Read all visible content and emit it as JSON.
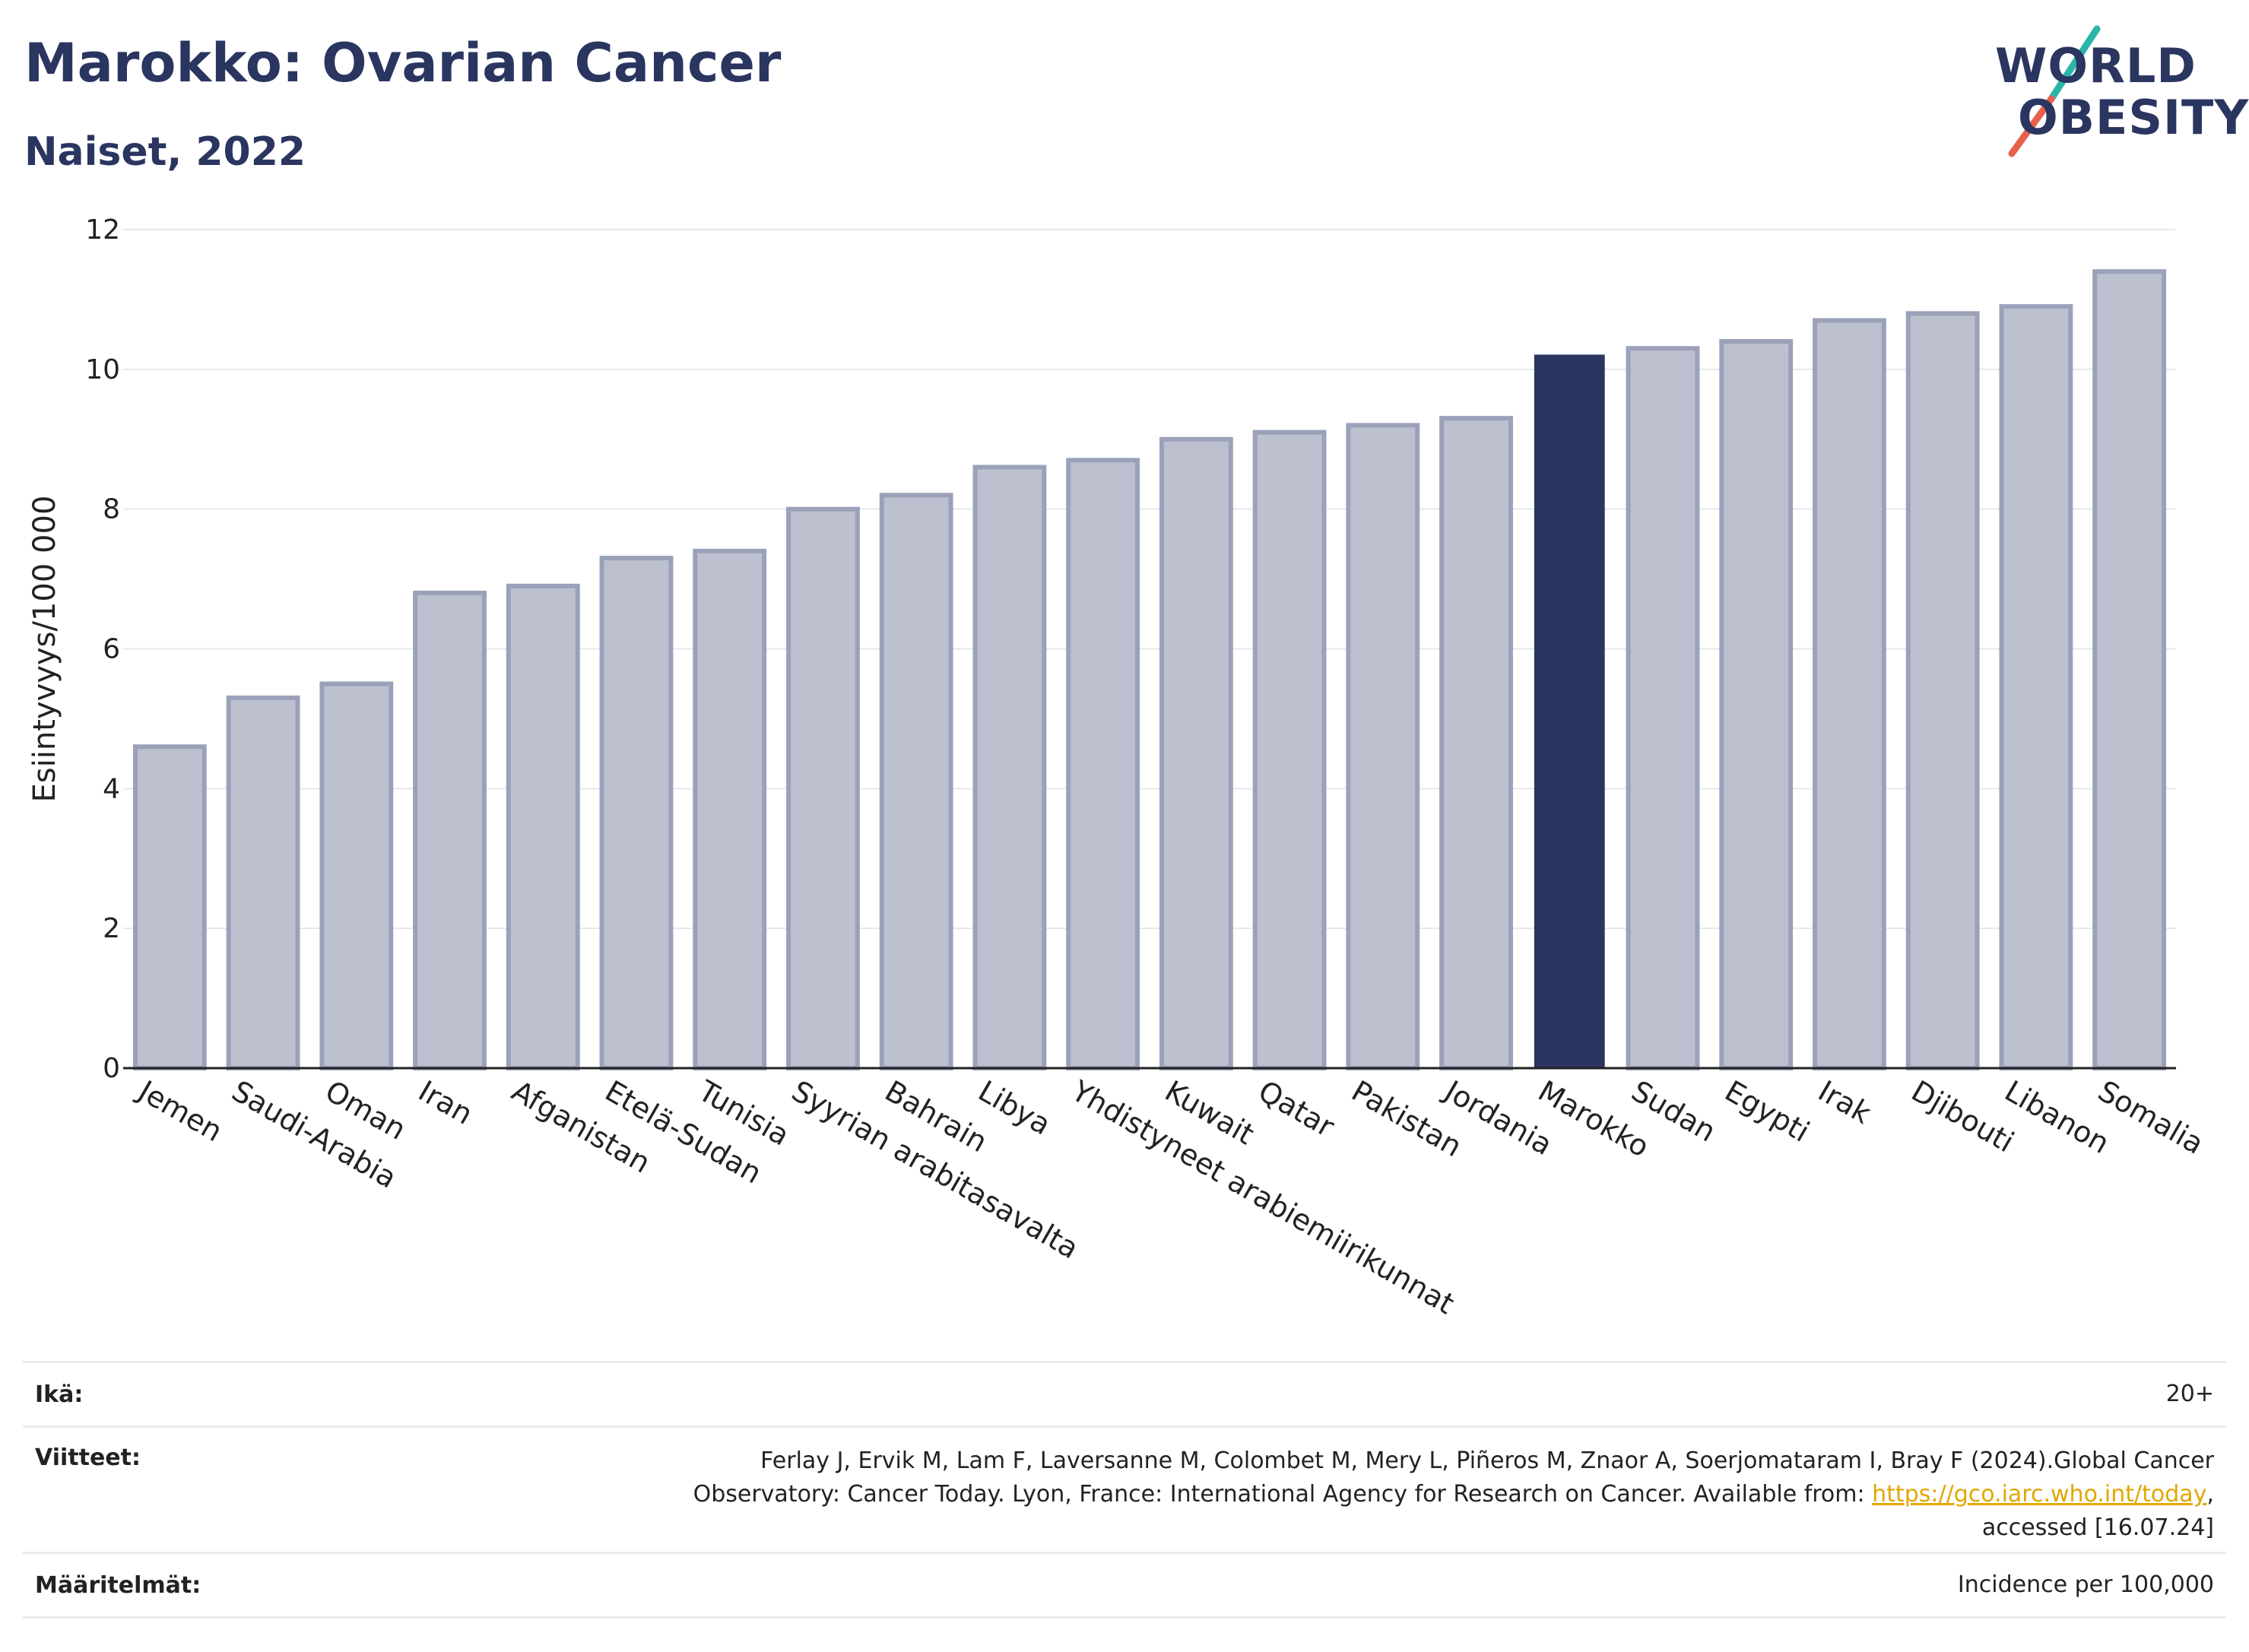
{
  "header": {
    "title": "Marokko: Ovarian Cancer",
    "subtitle": "Naiset, 2022"
  },
  "logo": {
    "line1": "WORLD",
    "line2": "OBESITY",
    "line1_rest": "RLD",
    "line2_rest": "BESITY",
    "line1_start": "W"
  },
  "colors": {
    "bar": "#bcc0cf",
    "bar_border": "#9aa1b9",
    "highlight": "#2a3560",
    "title": "#2a3560",
    "link": "#e0a800"
  },
  "chart_data": {
    "type": "bar",
    "ylabel": "Esiintyvyys/100 000",
    "xlabel": "",
    "ylim": [
      0,
      12
    ],
    "yticks": [
      0,
      2,
      4,
      6,
      8,
      10,
      12
    ],
    "grid": true,
    "highlight": "Marokko",
    "categories": [
      "Jemen",
      "Saudi-Arabia",
      "Oman",
      "Iran",
      "Afganistan",
      "Etelä-Sudan",
      "Tunisia",
      "Syyrian arabitasavalta",
      "Bahrain",
      "Libya",
      "Yhdistyneet arabiemiirikunnat",
      "Kuwait",
      "Qatar",
      "Pakistan",
      "Jordania",
      "Marokko",
      "Sudan",
      "Egypti",
      "Irak",
      "Djibouti",
      "Libanon",
      "Somalia"
    ],
    "values": [
      4.6,
      5.3,
      5.5,
      6.8,
      6.9,
      7.3,
      7.4,
      8.0,
      8.2,
      8.6,
      8.7,
      9.0,
      9.1,
      9.2,
      9.3,
      10.2,
      10.3,
      10.4,
      10.7,
      10.8,
      10.9,
      11.4
    ]
  },
  "footer": {
    "age_label": "Ikä:",
    "age_value": "20+",
    "refs_label": "Viitteet:",
    "refs_line1": "Ferlay J, Ervik M, Lam F, Laversanne M, Colombet M, Mery L, Piñeros M, Znaor A, Soerjomataram I, Bray F (2024).Global Cancer",
    "refs_line2a": "Observatory: Cancer Today. Lyon, France: International Agency for Research on Cancer. Available from: ",
    "refs_link": "https://gco.iarc.who.int/today",
    "refs_line2b": ",",
    "refs_line3": "accessed [16.07.24]",
    "defs_label": "Määritelmät:",
    "defs_value": "Incidence per 100,000"
  }
}
